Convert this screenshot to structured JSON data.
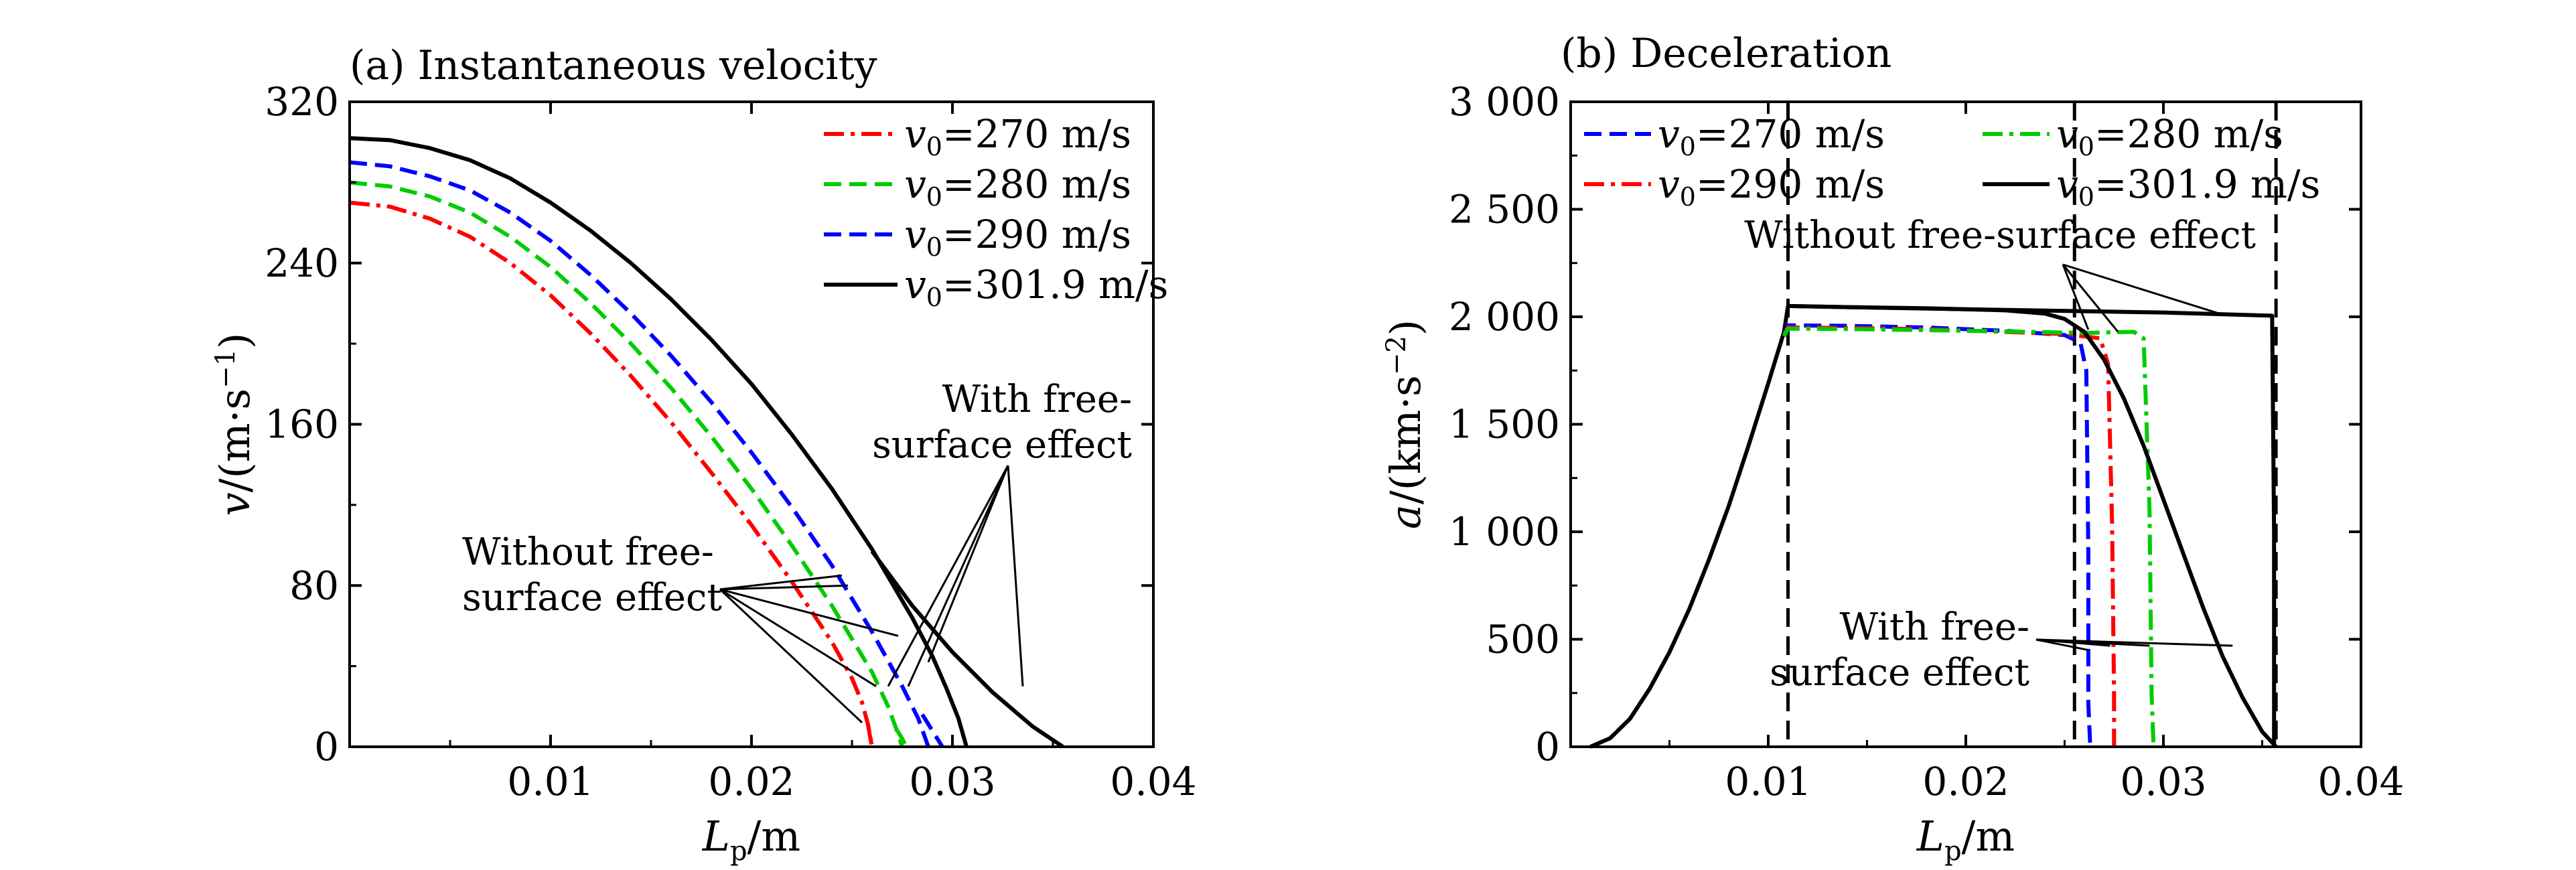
{
  "chart_data": [
    {
      "type": "line",
      "title": "(a) Instantaneous velocity",
      "xlabel": {
        "var": "L",
        "sub": "p",
        "unit": "/m"
      },
      "ylabel": {
        "var": "v",
        "unit": "/(m·s",
        "sup": "−1",
        "close": ")"
      },
      "xlim": [
        0,
        0.04
      ],
      "ylim": [
        0,
        320
      ],
      "xticks": [
        {
          "v": 0.01,
          "label": "0.01"
        },
        {
          "v": 0.02,
          "label": "0.02"
        },
        {
          "v": 0.03,
          "label": "0.03"
        },
        {
          "v": 0.04,
          "label": "0.04"
        }
      ],
      "yticks": [
        {
          "v": 0,
          "label": "0"
        },
        {
          "v": 80,
          "label": "80"
        },
        {
          "v": 160,
          "label": "160"
        },
        {
          "v": 240,
          "label": "240"
        },
        {
          "v": 320,
          "label": "320"
        }
      ],
      "grid": false,
      "legend": {
        "position": "top-right",
        "entries": [
          {
            "var": "v",
            "sub": "0",
            "text": "=270 m/s",
            "color": "#ff0000",
            "dash": "dashdot"
          },
          {
            "var": "v",
            "sub": "0",
            "text": "=280 m/s",
            "color": "#00cc00",
            "dash": "dash"
          },
          {
            "var": "v",
            "sub": "0",
            "text": "=290 m/s",
            "color": "#0000ff",
            "dash": "dash"
          },
          {
            "var": "v",
            "sub": "0",
            "text": "=301.9 m/s",
            "color": "#000000",
            "dash": "solid"
          }
        ]
      },
      "series": [
        {
          "name": "v0=270 m/s, with free-surface effect",
          "color": "#ff0000",
          "dash": "dashdot",
          "x": [
            0,
            0.002,
            0.004,
            0.006,
            0.008,
            0.01,
            0.012,
            0.014,
            0.016,
            0.018,
            0.02,
            0.022,
            0.024,
            0.025,
            0.0255,
            0.0258,
            0.026
          ],
          "y": [
            270,
            268,
            262,
            253,
            240,
            224,
            205,
            184,
            161,
            136,
            110,
            82,
            52,
            34,
            22,
            11,
            0
          ]
        },
        {
          "name": "v0=270 m/s, without free-surface effect",
          "color": "#ff0000",
          "dash": "dashdot",
          "x": [
            0.0258,
            0.0259,
            0.026
          ],
          "y": [
            11,
            5,
            0
          ]
        },
        {
          "name": "v0=280 m/s, with free-surface effect",
          "color": "#00cc00",
          "dash": "dash",
          "x": [
            0,
            0.002,
            0.004,
            0.006,
            0.008,
            0.01,
            0.012,
            0.014,
            0.016,
            0.018,
            0.02,
            0.022,
            0.024,
            0.026,
            0.0268,
            0.0272,
            0.0275
          ],
          "y": [
            280,
            278,
            273,
            265,
            253,
            238,
            220,
            200,
            178,
            154,
            128,
            100,
            70,
            37,
            20,
            9,
            0
          ]
        },
        {
          "name": "v0=280 m/s, without free-surface effect",
          "color": "#00cc00",
          "dash": "dash",
          "x": [
            0.0272,
            0.0275,
            0.0277
          ],
          "y": [
            9,
            4,
            0
          ]
        },
        {
          "name": "v0=290 m/s, with free-surface effect",
          "color": "#0000ff",
          "dash": "dash",
          "x": [
            0,
            0.002,
            0.004,
            0.006,
            0.008,
            0.01,
            0.012,
            0.014,
            0.016,
            0.018,
            0.02,
            0.022,
            0.024,
            0.026,
            0.0275,
            0.0283,
            0.0288
          ],
          "y": [
            290,
            288,
            283,
            276,
            265,
            251,
            234,
            215,
            194,
            171,
            146,
            119,
            90,
            57,
            30,
            14,
            0
          ]
        },
        {
          "name": "v0=290 m/s, without free-surface effect",
          "color": "#0000ff",
          "dash": "dash",
          "x": [
            0.0285,
            0.029,
            0.0295
          ],
          "y": [
            16,
            8,
            0
          ]
        },
        {
          "name": "v0=301.9 m/s, with free-surface effect",
          "color": "#000000",
          "dash": "solid",
          "x": [
            0,
            0.002,
            0.004,
            0.006,
            0.008,
            0.01,
            0.012,
            0.014,
            0.016,
            0.018,
            0.02,
            0.022,
            0.024,
            0.026,
            0.028,
            0.029,
            0.0297,
            0.0303,
            0.0307
          ],
          "y": [
            302,
            301,
            297,
            291,
            282,
            270,
            256,
            240,
            222,
            202,
            180,
            155,
            128,
            98,
            64,
            45,
            29,
            14,
            0
          ]
        },
        {
          "name": "v0=301.9 m/s, without free-surface effect",
          "color": "#000000",
          "dash": "solid",
          "x": [
            0.026,
            0.028,
            0.03,
            0.032,
            0.034,
            0.0355
          ],
          "y": [
            97,
            70,
            47,
            27,
            10,
            0
          ]
        }
      ],
      "annotations": [
        {
          "lines": [
            "With free-",
            "surface effect"
          ]
        },
        {
          "lines": [
            "Without free-",
            "surface effect"
          ]
        }
      ]
    },
    {
      "type": "line",
      "title": "(b) Deceleration",
      "xlabel": {
        "var": "L",
        "sub": "p",
        "unit": "/m"
      },
      "ylabel": {
        "var": "a",
        "unit": "/(km·s",
        "sup": "−2",
        "close": ")"
      },
      "xlim": [
        0,
        0.04
      ],
      "ylim": [
        0,
        3000
      ],
      "xticks": [
        {
          "v": 0.01,
          "label": "0.01"
        },
        {
          "v": 0.02,
          "label": "0.02"
        },
        {
          "v": 0.03,
          "label": "0.03"
        },
        {
          "v": 0.04,
          "label": "0.04"
        }
      ],
      "yticks": [
        {
          "v": 0,
          "label": "0"
        },
        {
          "v": 500,
          "label": "500"
        },
        {
          "v": 1000,
          "label": "1 000"
        },
        {
          "v": 1500,
          "label": "1 500"
        },
        {
          "v": 2000,
          "label": "2 000"
        },
        {
          "v": 2500,
          "label": "2 500"
        },
        {
          "v": 3000,
          "label": "3 000"
        }
      ],
      "grid": false,
      "legend": {
        "position": "top",
        "entries": [
          {
            "var": "v",
            "sub": "0",
            "text": "=270 m/s",
            "color": "#0000ff",
            "dash": "dash"
          },
          {
            "var": "v",
            "sub": "0",
            "text": "=280 m/s",
            "color": "#00cc00",
            "dash": "dashdot"
          },
          {
            "var": "v",
            "sub": "0",
            "text": "=290 m/s",
            "color": "#ff0000",
            "dash": "dashdot"
          },
          {
            "var": "v",
            "sub": "0",
            "text": "=301.9 m/s",
            "color": "#000000",
            "dash": "solid"
          }
        ]
      },
      "vlines": [
        0.011,
        0.0255,
        0.0357
      ],
      "series": [
        {
          "name": "rise (all cases)",
          "color": "#000000",
          "dash": "solid",
          "x": [
            0.001,
            0.002,
            0.003,
            0.004,
            0.005,
            0.006,
            0.007,
            0.008,
            0.009,
            0.01,
            0.0108,
            0.011
          ],
          "y": [
            0,
            40,
            130,
            270,
            440,
            640,
            870,
            1120,
            1400,
            1690,
            1930,
            2050
          ]
        },
        {
          "name": "v0=270 m/s",
          "color": "#0000ff",
          "dash": "dash",
          "x": [
            0.0108,
            0.011,
            0.014,
            0.018,
            0.022,
            0.025,
            0.0258,
            0.0261,
            0.0262,
            0.0262,
            0.0263
          ],
          "y": [
            1920,
            1960,
            1958,
            1950,
            1935,
            1915,
            1880,
            1750,
            900,
            200,
            0
          ]
        },
        {
          "name": "v0=290 m/s",
          "color": "#ff0000",
          "dash": "dashdot",
          "x": [
            0.0108,
            0.011,
            0.014,
            0.018,
            0.022,
            0.025,
            0.0268,
            0.0272,
            0.0274,
            0.0275,
            0.0275
          ],
          "y": [
            1915,
            1950,
            1948,
            1942,
            1930,
            1920,
            1900,
            1780,
            1050,
            250,
            0
          ]
        },
        {
          "name": "v0=280 m/s",
          "color": "#00cc00",
          "dash": "dashdot",
          "x": [
            0.0108,
            0.011,
            0.014,
            0.018,
            0.022,
            0.026,
            0.0285,
            0.029,
            0.0293,
            0.0294,
            0.0295
          ],
          "y": [
            1910,
            1945,
            1943,
            1938,
            1932,
            1925,
            1930,
            1900,
            1100,
            250,
            0
          ]
        },
        {
          "name": "v0=301.9 m/s, with free-surface effect",
          "color": "#000000",
          "dash": "solid",
          "x": [
            0.011,
            0.014,
            0.018,
            0.022,
            0.024,
            0.025,
            0.026,
            0.027,
            0.028,
            0.029,
            0.03,
            0.031,
            0.032,
            0.033,
            0.034,
            0.035,
            0.0357
          ],
          "y": [
            2050,
            2045,
            2040,
            2030,
            2015,
            1990,
            1930,
            1800,
            1620,
            1400,
            1150,
            900,
            650,
            420,
            230,
            70,
            0
          ]
        },
        {
          "name": "v0=301.9 m/s, without free-surface effect",
          "color": "#000000",
          "dash": "solid",
          "x": [
            0.011,
            0.02,
            0.03,
            0.0355,
            0.0356,
            0.0356
          ],
          "y": [
            2050,
            2035,
            2020,
            2005,
            1000,
            0
          ]
        }
      ],
      "annotations": [
        {
          "lines": [
            "Without free-surface effect"
          ]
        },
        {
          "lines": [
            "With free-",
            "surface effect"
          ]
        }
      ]
    }
  ]
}
